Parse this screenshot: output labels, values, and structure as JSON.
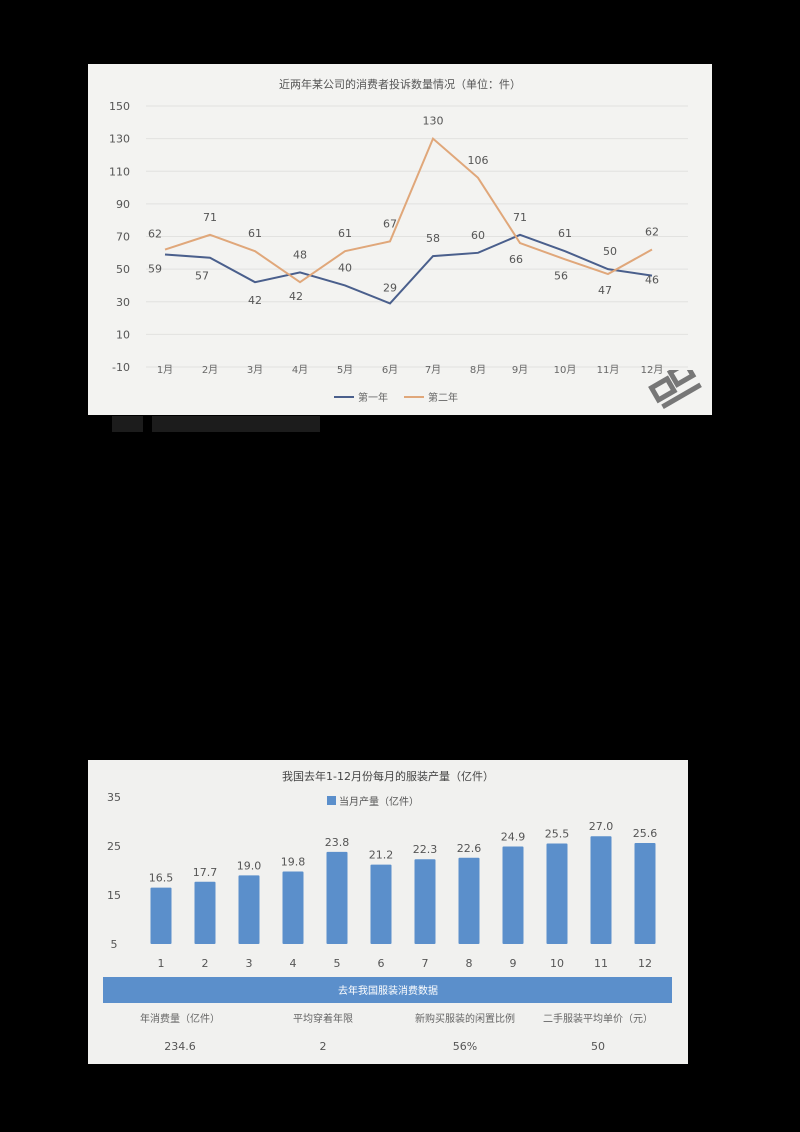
{
  "charts": {
    "top": {
      "title": "近两年某公司的消费者投诉数量情况（单位：件）",
      "yticks": [
        150,
        130,
        110,
        90,
        70,
        50,
        30,
        10,
        -10
      ],
      "legend": [
        "第一年",
        "第二年"
      ]
    },
    "bottom": {
      "title": "我国去年1-12月份每月的服装产量（亿件）",
      "legend": "当月产量（亿件）",
      "yticks": [
        35,
        25,
        15,
        5
      ]
    }
  },
  "table": {
    "header": "去年我国服装消费数据",
    "columns": [
      "年消费量（亿件）",
      "平均穿着年限",
      "新购买服装的闲置比例",
      "二手服装平均单价（元）"
    ],
    "values": [
      "234.6",
      "2",
      "56%",
      "50"
    ]
  },
  "colors": {
    "series1": "#4a5f8c",
    "series2": "#e0a77a",
    "bar": "#5b8fcb",
    "table_header": "#5b8fcb"
  },
  "chart_data": [
    {
      "type": "line",
      "title": "近两年某公司的消费者投诉数量情况（单位：件）",
      "xlabel": "",
      "ylabel": "",
      "categories": [
        "1月",
        "2月",
        "3月",
        "4月",
        "5月",
        "6月",
        "7月",
        "8月",
        "9月",
        "10月",
        "11月",
        "12月"
      ],
      "series": [
        {
          "name": "第一年",
          "color": "#4a5f8c",
          "values": [
            59,
            57,
            42,
            48,
            40,
            29,
            58,
            60,
            71,
            61,
            50,
            46
          ]
        },
        {
          "name": "第二年",
          "color": "#e0a77a",
          "values": [
            62,
            71,
            61,
            42,
            61,
            67,
            130,
            106,
            66,
            56,
            47,
            62
          ]
        }
      ],
      "ylim": [
        -10,
        150
      ],
      "yticks": [
        -10,
        10,
        30,
        50,
        70,
        90,
        110,
        130,
        150
      ],
      "grid": true,
      "legend_position": "bottom"
    },
    {
      "type": "bar",
      "title": "我国去年1-12月份每月的服装产量（亿件）",
      "xlabel": "",
      "ylabel": "",
      "categories": [
        "1",
        "2",
        "3",
        "4",
        "5",
        "6",
        "7",
        "8",
        "9",
        "10",
        "11",
        "12"
      ],
      "series": [
        {
          "name": "当月产量（亿件）",
          "color": "#5b8fcb",
          "values": [
            16.5,
            17.7,
            19.0,
            19.8,
            23.8,
            21.2,
            22.3,
            22.6,
            24.9,
            25.5,
            27.0,
            25.6
          ]
        }
      ],
      "ylim": [
        5,
        35
      ],
      "yticks": [
        5,
        15,
        25,
        35
      ],
      "grid": false,
      "legend_position": "top"
    },
    {
      "type": "table",
      "title": "去年我国服装消费数据",
      "columns": [
        "年消费量（亿件）",
        "平均穿着年限",
        "新购买服装的闲置比例",
        "二手服装平均单价（元）"
      ],
      "rows": [
        [
          "234.6",
          "2",
          "56%",
          "50"
        ]
      ]
    }
  ]
}
